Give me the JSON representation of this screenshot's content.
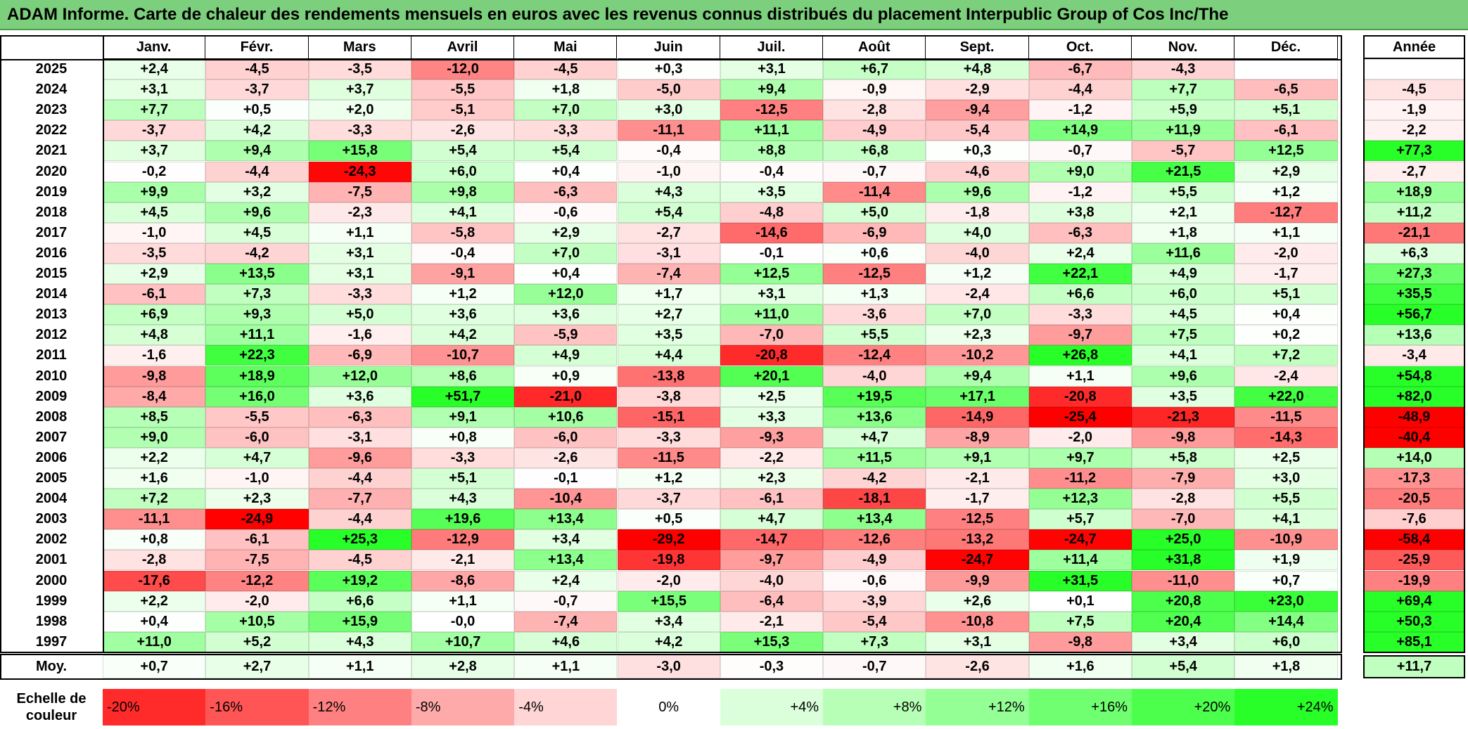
{
  "title": "ADAM Informe. Carte de chaleur des rendements mensuels en euros avec les revenus connus distribués du placement Interpublic Group of Cos Inc/The",
  "chart_data": {
    "type": "heatmap",
    "title": "ADAM Informe. Carte de chaleur des rendements mensuels en euros avec les revenus connus distribués du placement Interpublic Group of Cos Inc/The",
    "columns": [
      "Janv.",
      "Févr.",
      "Mars",
      "Avril",
      "Mai",
      "Juin",
      "Juil.",
      "Août",
      "Sept.",
      "Oct.",
      "Nov.",
      "Déc."
    ],
    "year_header": "Année",
    "rows": [
      {
        "year": "2025",
        "values": [
          "+2,4",
          "-4,5",
          "-3,5",
          "-12,0",
          "-4,5",
          "+0,3",
          "+3,1",
          "+6,7",
          "+4,8",
          "-6,7",
          "-4,3",
          ""
        ],
        "annual": ""
      },
      {
        "year": "2024",
        "values": [
          "+3,1",
          "-3,7",
          "+3,7",
          "-5,5",
          "+1,8",
          "-5,0",
          "+9,4",
          "-0,9",
          "-2,9",
          "-4,4",
          "+7,7",
          "-6,5"
        ],
        "annual": "-4,5"
      },
      {
        "year": "2023",
        "values": [
          "+7,7",
          "+0,5",
          "+2,0",
          "-5,1",
          "+7,0",
          "+3,0",
          "-12,5",
          "-2,8",
          "-9,4",
          "-1,2",
          "+5,9",
          "+5,1"
        ],
        "annual": "-1,9"
      },
      {
        "year": "2022",
        "values": [
          "-3,7",
          "+4,2",
          "-3,3",
          "-2,6",
          "-3,3",
          "-11,1",
          "+11,1",
          "-4,9",
          "-5,4",
          "+14,9",
          "+11,9",
          "-6,1"
        ],
        "annual": "-2,2"
      },
      {
        "year": "2021",
        "values": [
          "+3,7",
          "+9,4",
          "+15,8",
          "+5,4",
          "+5,4",
          "-0,4",
          "+8,8",
          "+6,8",
          "+0,3",
          "-0,7",
          "-5,7",
          "+12,5"
        ],
        "annual": "+77,3"
      },
      {
        "year": "2020",
        "values": [
          "-0,2",
          "-4,4",
          "-24,3",
          "+6,0",
          "+0,4",
          "-1,0",
          "-0,4",
          "-0,7",
          "-4,6",
          "+9,0",
          "+21,5",
          "+2,9"
        ],
        "annual": "-2,7"
      },
      {
        "year": "2019",
        "values": [
          "+9,9",
          "+3,2",
          "-7,5",
          "+9,8",
          "-6,3",
          "+4,3",
          "+3,5",
          "-11,4",
          "+9,6",
          "-1,2",
          "+5,5",
          "+1,2"
        ],
        "annual": "+18,9"
      },
      {
        "year": "2018",
        "values": [
          "+4,5",
          "+9,6",
          "-2,3",
          "+4,1",
          "-0,6",
          "+5,4",
          "-4,8",
          "+5,0",
          "-1,8",
          "+3,8",
          "+2,1",
          "-12,7"
        ],
        "annual": "+11,2"
      },
      {
        "year": "2017",
        "values": [
          "-1,0",
          "+4,5",
          "+1,1",
          "-5,8",
          "+2,9",
          "-2,7",
          "-14,6",
          "-6,9",
          "+4,0",
          "-6,3",
          "+1,8",
          "+1,1"
        ],
        "annual": "-21,1"
      },
      {
        "year": "2016",
        "values": [
          "-3,5",
          "-4,2",
          "+3,1",
          "-0,4",
          "+7,0",
          "-3,1",
          "-0,1",
          "+0,6",
          "-4,0",
          "+2,4",
          "+11,6",
          "-2,0"
        ],
        "annual": "+6,3"
      },
      {
        "year": "2015",
        "values": [
          "+2,9",
          "+13,5",
          "+3,1",
          "-9,1",
          "+0,4",
          "-7,4",
          "+12,5",
          "-12,5",
          "+1,2",
          "+22,1",
          "+4,9",
          "-1,7"
        ],
        "annual": "+27,3"
      },
      {
        "year": "2014",
        "values": [
          "-6,1",
          "+7,3",
          "-3,3",
          "+1,2",
          "+12,0",
          "+1,7",
          "+3,1",
          "+1,3",
          "-2,4",
          "+6,6",
          "+6,0",
          "+5,1"
        ],
        "annual": "+35,5"
      },
      {
        "year": "2013",
        "values": [
          "+6,9",
          "+9,3",
          "+5,0",
          "+3,6",
          "+3,6",
          "+2,7",
          "+11,0",
          "-3,6",
          "+7,0",
          "-3,3",
          "+4,5",
          "+0,4"
        ],
        "annual": "+56,7"
      },
      {
        "year": "2012",
        "values": [
          "+4,8",
          "+11,1",
          "-1,6",
          "+4,2",
          "-5,9",
          "+3,5",
          "-7,0",
          "+5,5",
          "+2,3",
          "-9,7",
          "+7,5",
          "+0,2"
        ],
        "annual": "+13,6"
      },
      {
        "year": "2011",
        "values": [
          "-1,6",
          "+22,3",
          "-6,9",
          "-10,7",
          "+4,9",
          "+4,4",
          "-20,8",
          "-12,4",
          "-10,2",
          "+26,8",
          "+4,1",
          "+7,2"
        ],
        "annual": "-3,4"
      },
      {
        "year": "2010",
        "values": [
          "-9,8",
          "+18,9",
          "+12,0",
          "+8,6",
          "+0,9",
          "-13,8",
          "+20,1",
          "-4,0",
          "+9,4",
          "+1,1",
          "+9,6",
          "-2,4"
        ],
        "annual": "+54,8"
      },
      {
        "year": "2009",
        "values": [
          "-8,4",
          "+16,0",
          "+3,6",
          "+51,7",
          "-21,0",
          "-3,8",
          "+2,5",
          "+19,5",
          "+17,1",
          "-20,8",
          "+3,5",
          "+22,0"
        ],
        "annual": "+82,0"
      },
      {
        "year": "2008",
        "values": [
          "+8,5",
          "-5,5",
          "-6,3",
          "+9,1",
          "+10,6",
          "-15,1",
          "+3,3",
          "+13,6",
          "-14,9",
          "-25,4",
          "-21,3",
          "-11,5"
        ],
        "annual": "-48,9"
      },
      {
        "year": "2007",
        "values": [
          "+9,0",
          "-6,0",
          "-3,1",
          "+0,8",
          "-6,0",
          "-3,3",
          "-9,3",
          "+4,7",
          "-8,9",
          "-2,0",
          "-9,8",
          "-14,3"
        ],
        "annual": "-40,4"
      },
      {
        "year": "2006",
        "values": [
          "+2,2",
          "+4,7",
          "-9,6",
          "-3,3",
          "-2,6",
          "-11,5",
          "-2,2",
          "+11,5",
          "+9,1",
          "+9,7",
          "+5,8",
          "+2,5"
        ],
        "annual": "+14,0"
      },
      {
        "year": "2005",
        "values": [
          "+1,6",
          "-1,0",
          "-4,4",
          "+5,1",
          "-0,1",
          "+1,2",
          "+2,3",
          "-4,2",
          "-2,1",
          "-11,2",
          "-7,9",
          "+3,0"
        ],
        "annual": "-17,3"
      },
      {
        "year": "2004",
        "values": [
          "+7,2",
          "+2,3",
          "-7,7",
          "+4,3",
          "-10,4",
          "-3,7",
          "-6,1",
          "-18,1",
          "-1,7",
          "+12,3",
          "-2,8",
          "+5,5"
        ],
        "annual": "-20,5"
      },
      {
        "year": "2003",
        "values": [
          "-11,1",
          "-24,9",
          "-4,4",
          "+19,6",
          "+13,4",
          "+0,5",
          "+4,7",
          "+13,4",
          "-12,5",
          "+5,7",
          "-7,0",
          "+4,1"
        ],
        "annual": "-7,6"
      },
      {
        "year": "2002",
        "values": [
          "+0,8",
          "-6,1",
          "+25,3",
          "-12,9",
          "+3,4",
          "-29,2",
          "-14,7",
          "-12,6",
          "-13,2",
          "-24,7",
          "+25,0",
          "-10,9"
        ],
        "annual": "-58,4"
      },
      {
        "year": "2001",
        "values": [
          "-2,8",
          "-7,5",
          "-4,5",
          "-2,1",
          "+13,4",
          "-19,8",
          "-9,7",
          "-4,9",
          "-24,7",
          "+11,4",
          "+31,8",
          "+1,9"
        ],
        "annual": "-25,9"
      },
      {
        "year": "2000",
        "values": [
          "-17,6",
          "-12,2",
          "+19,2",
          "-8,6",
          "+2,4",
          "-2,0",
          "-4,0",
          "-0,6",
          "-9,9",
          "+31,5",
          "-11,0",
          "+0,7"
        ],
        "annual": "-19,9"
      },
      {
        "year": "1999",
        "values": [
          "+2,2",
          "-2,0",
          "+6,6",
          "+1,1",
          "-0,7",
          "+15,5",
          "-6,4",
          "-3,9",
          "+2,6",
          "+0,1",
          "+20,8",
          "+23,0"
        ],
        "annual": "+69,4"
      },
      {
        "year": "1998",
        "values": [
          "+0,4",
          "+10,5",
          "+15,9",
          "-0,0",
          "-7,4",
          "+3,4",
          "-2,1",
          "-5,4",
          "-10,8",
          "+7,5",
          "+20,4",
          "+14,4"
        ],
        "annual": "+50,3"
      },
      {
        "year": "1997",
        "values": [
          "+11,0",
          "+5,2",
          "+4,3",
          "+10,7",
          "+4,6",
          "+4,2",
          "+15,3",
          "+7,3",
          "+3,1",
          "-9,8",
          "+3,4",
          "+6,0"
        ],
        "annual": "+85,1"
      }
    ],
    "average": {
      "label": "Moy.",
      "values": [
        "+0,7",
        "+2,7",
        "+1,1",
        "+2,8",
        "+1,1",
        "-3,0",
        "-0,3",
        "-0,7",
        "-2,6",
        "+1,6",
        "+5,4",
        "+1,8"
      ],
      "annual": "+11,7"
    },
    "scale": {
      "label_line1": "Echelle de",
      "label_line2": "couleur",
      "ticks": [
        "-20%",
        "-16%",
        "-12%",
        "-8%",
        "-4%",
        "0%",
        "+4%",
        "+8%",
        "+12%",
        "+16%",
        "+20%",
        "+24%"
      ]
    }
  }
}
